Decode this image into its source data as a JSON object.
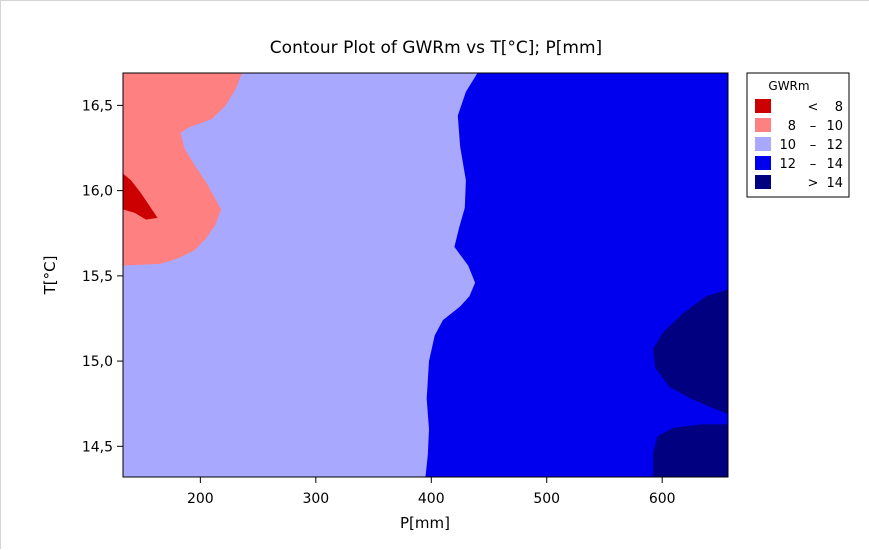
{
  "chart_data": {
    "type": "contour",
    "title": "Contour Plot of GWRm vs T[°C]; P[mm]",
    "xlabel": "P[mm]",
    "ylabel": "T[°C]",
    "xlim": [
      133,
      657
    ],
    "ylim": [
      14.32,
      16.69
    ],
    "x_ticks": [
      200,
      300,
      400,
      500,
      600
    ],
    "x_tick_labels": [
      "200",
      "300",
      "400",
      "500",
      "600"
    ],
    "y_ticks": [
      14.5,
      15.0,
      15.5,
      16.0,
      16.5
    ],
    "y_tick_labels": [
      "14,5",
      "15,0",
      "15,5",
      "16,0",
      "16,5"
    ],
    "legend": {
      "title": "GWRm",
      "position": "right",
      "entries": [
        {
          "op": "<",
          "lo": "",
          "hi": "8",
          "color": "#cc0000"
        },
        {
          "op": "–",
          "lo": "8",
          "hi": "10",
          "color": "#ff8080"
        },
        {
          "op": "–",
          "lo": "10",
          "hi": "12",
          "color": "#a8a8ff"
        },
        {
          "op": "–",
          "lo": "12",
          "hi": "14",
          "color": "#0000ee"
        },
        {
          "op": ">",
          "lo": "",
          "hi": "14",
          "color": "#000080"
        }
      ]
    },
    "regions": [
      {
        "level": "10 – 12",
        "color": "#a8a8ff",
        "points": [
          [
            133,
            14.32
          ],
          [
            657,
            14.32
          ],
          [
            657,
            16.69
          ],
          [
            133,
            16.69
          ]
        ]
      },
      {
        "level": "8 – 10",
        "color": "#ff8080",
        "points": [
          [
            133,
            16.69
          ],
          [
            236,
            16.69
          ],
          [
            231,
            16.6
          ],
          [
            222,
            16.5
          ],
          [
            210,
            16.42
          ],
          [
            190,
            16.37
          ],
          [
            183,
            16.34
          ],
          [
            186,
            16.25
          ],
          [
            195,
            16.15
          ],
          [
            205,
            16.05
          ],
          [
            213,
            15.95
          ],
          [
            218,
            15.89
          ],
          [
            213,
            15.8
          ],
          [
            205,
            15.72
          ],
          [
            195,
            15.65
          ],
          [
            180,
            15.6
          ],
          [
            165,
            15.57
          ],
          [
            133,
            15.56
          ]
        ]
      },
      {
        "level": "< 8",
        "color": "#cc0000",
        "points": [
          [
            133,
            16.1
          ],
          [
            140,
            16.06
          ],
          [
            148,
            15.99
          ],
          [
            156,
            15.91
          ],
          [
            163,
            15.84
          ],
          [
            153,
            15.83
          ],
          [
            143,
            15.87
          ],
          [
            133,
            15.89
          ]
        ]
      },
      {
        "level": "12 – 14",
        "color": "#0000ee",
        "points": [
          [
            440,
            16.69
          ],
          [
            657,
            16.69
          ],
          [
            657,
            14.32
          ],
          [
            395,
            14.32
          ],
          [
            397,
            14.45
          ],
          [
            398,
            14.6
          ],
          [
            396,
            14.78
          ],
          [
            398,
            15.0
          ],
          [
            403,
            15.15
          ],
          [
            410,
            15.24
          ],
          [
            425,
            15.32
          ],
          [
            433,
            15.38
          ],
          [
            438,
            15.46
          ],
          [
            432,
            15.56
          ],
          [
            420,
            15.67
          ],
          [
            424,
            15.78
          ],
          [
            429,
            15.9
          ],
          [
            430,
            16.06
          ],
          [
            425,
            16.26
          ],
          [
            423,
            16.44
          ],
          [
            430,
            16.58
          ]
        ]
      },
      {
        "level": "> 14",
        "color": "#000080",
        "points": [
          [
            657,
            15.42
          ],
          [
            638,
            15.38
          ],
          [
            618,
            15.28
          ],
          [
            601,
            15.17
          ],
          [
            592,
            15.07
          ],
          [
            594,
            14.96
          ],
          [
            606,
            14.85
          ],
          [
            625,
            14.78
          ],
          [
            645,
            14.72
          ],
          [
            657,
            14.69
          ]
        ]
      },
      {
        "level": "> 14",
        "color": "#000080",
        "points": [
          [
            592,
            14.32
          ],
          [
            657,
            14.32
          ],
          [
            657,
            14.63
          ],
          [
            635,
            14.63
          ],
          [
            610,
            14.61
          ],
          [
            596,
            14.56
          ],
          [
            592,
            14.46
          ]
        ]
      }
    ]
  }
}
